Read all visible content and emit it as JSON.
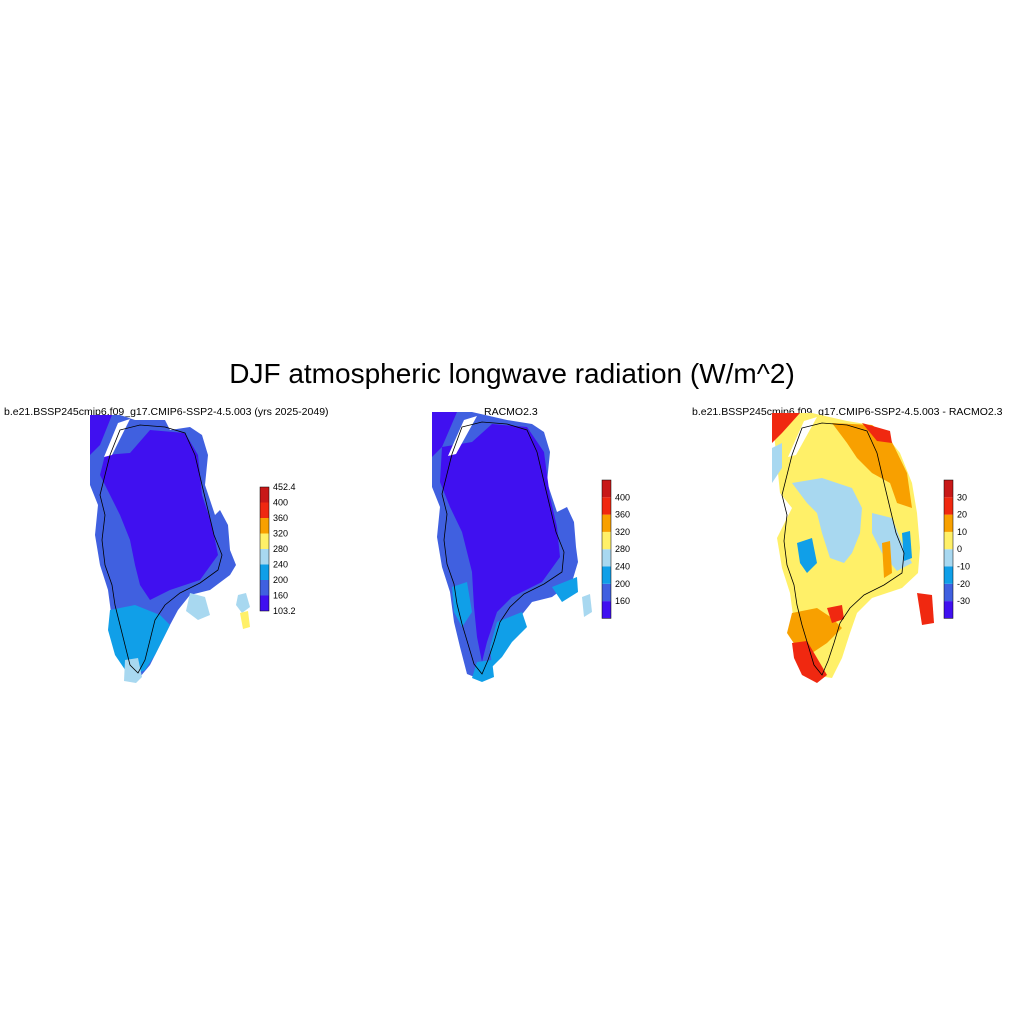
{
  "title": "DJF atmospheric longwave radiation (W/m^2)",
  "panels": [
    {
      "id": "model",
      "subtitle": "b.e21.BSSP245cmip6.f09_g17.CMIP6-SSP2-4.5.003 (yrs 2025-2049)",
      "colorbar": {
        "colors": [
          "#4010f0",
          "#4060e0",
          "#109fe8",
          "#a8d8f0",
          "#fff068",
          "#f8a000",
          "#f02810",
          "#c81818"
        ],
        "labels": [
          "103.2",
          "160",
          "200",
          "240",
          "280",
          "320",
          "360",
          "400",
          "452.4"
        ]
      }
    },
    {
      "id": "racmo",
      "subtitle": "RACMO2.3",
      "colorbar": {
        "colors": [
          "#4010f0",
          "#4060e0",
          "#109fe8",
          "#a8d8f0",
          "#fff068",
          "#f8a000",
          "#f02810",
          "#c81818"
        ],
        "labels": [
          "",
          "160",
          "200",
          "240",
          "280",
          "320",
          "360",
          "400",
          ""
        ]
      }
    },
    {
      "id": "difference",
      "subtitle": "b.e21.BSSP245cmip6.f09_g17.CMIP6-SSP2-4.5.003 - RACMO2.3",
      "colorbar": {
        "colors": [
          "#4010f0",
          "#4060e0",
          "#109fe8",
          "#a8d8f0",
          "#fff068",
          "#f8a000",
          "#f02810",
          "#c81818"
        ],
        "labels": [
          "",
          "-30",
          "-20",
          "-10",
          "0",
          "10",
          "20",
          "30",
          ""
        ]
      }
    }
  ]
}
